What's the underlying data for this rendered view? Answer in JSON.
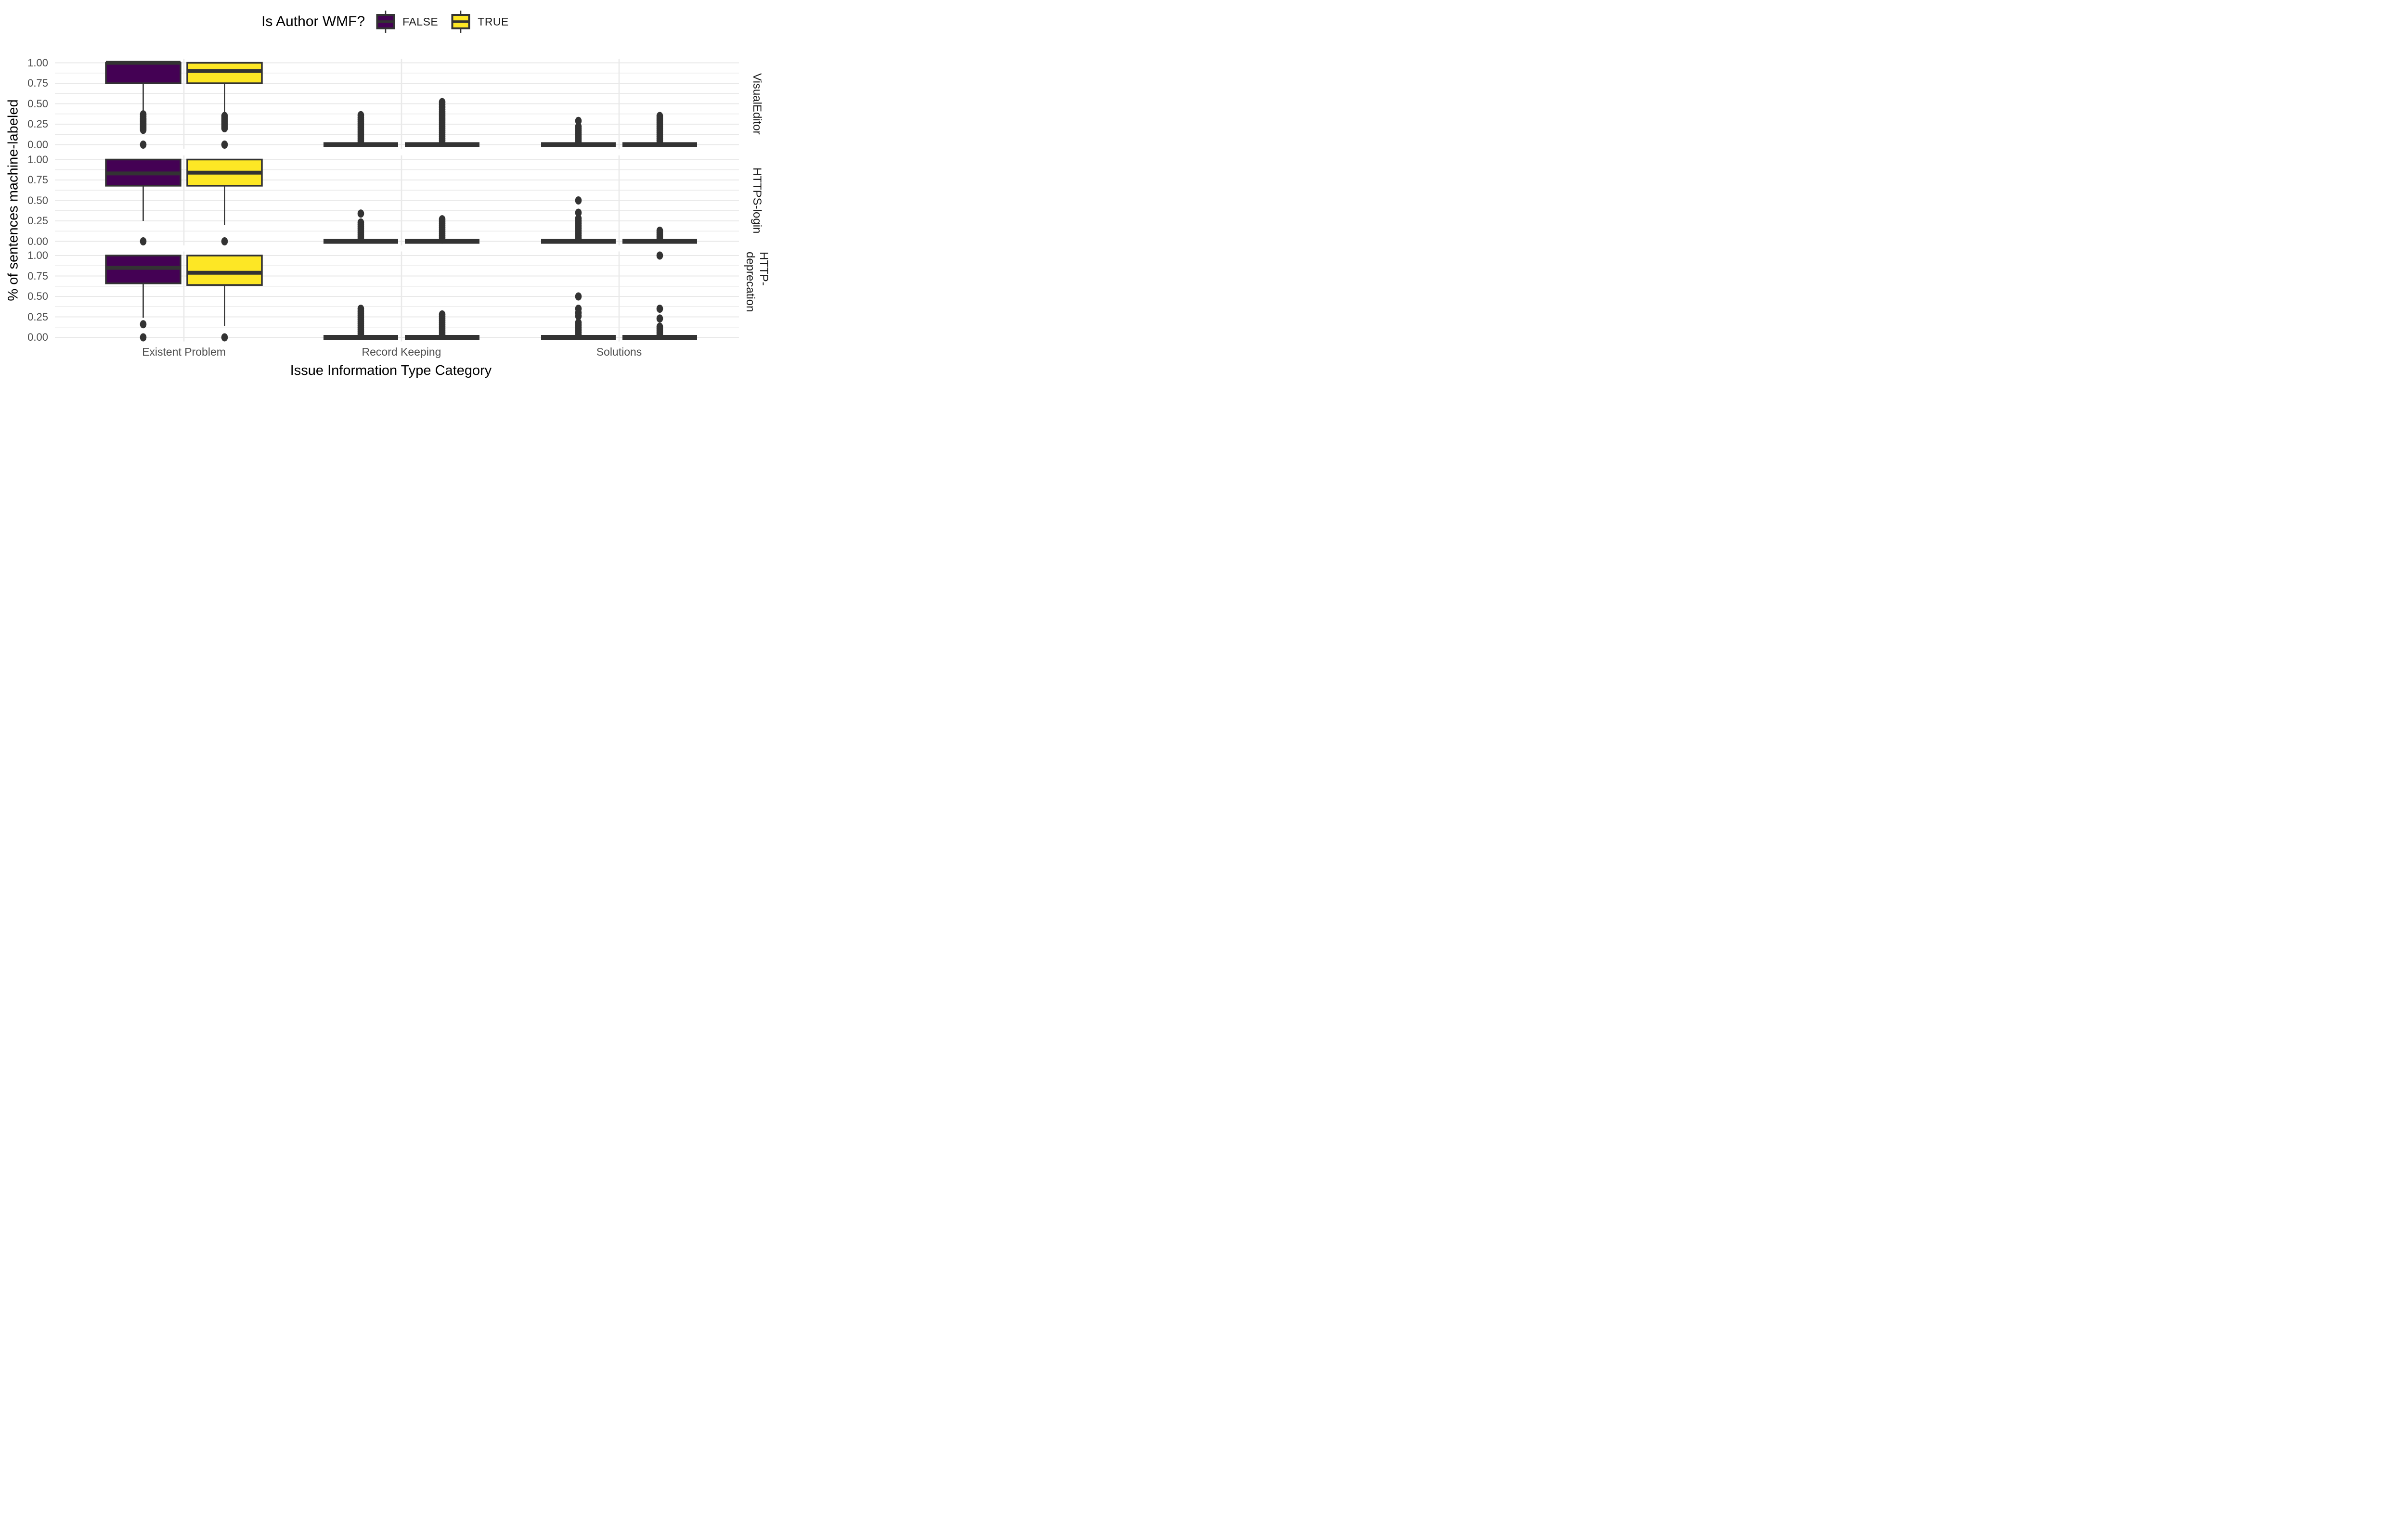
{
  "legend": {
    "title": "Is Author WMF?",
    "entries": [
      {
        "label": "FALSE",
        "color": "#440154"
      },
      {
        "label": "TRUE",
        "color": "#FDE725"
      }
    ]
  },
  "axes": {
    "y_title": "% of sentences machine-labeled",
    "x_title": "Issue Information Type Category",
    "y_tick_labels": [
      "1.00",
      "0.75",
      "0.50",
      "0.25",
      "0.00"
    ],
    "y_tick_values": [
      1.0,
      0.75,
      0.5,
      0.25,
      0.0
    ]
  },
  "style": {
    "box_border_color": "#333333",
    "outlier_color": "#333333",
    "grid_color": "#E9E9E9",
    "tick_text_color": "#4d4d4d",
    "false_color": "#440154",
    "true_color": "#FDE725"
  },
  "chart_data": {
    "type": "boxplot",
    "title": "",
    "xlabel": "Issue Information Type Category",
    "ylabel": "% of sentences machine-labeled",
    "ylim": [
      0,
      1
    ],
    "grid": {
      "major_step": 0.25,
      "minor_step": 0.125,
      "gridlines_on": true
    },
    "legend_position": "top",
    "facets": [
      "VisualEditor",
      "HTTPS-login",
      "HTTP-deprecation"
    ],
    "categories": [
      "Existent Problem",
      "Record Keeping",
      "Solutions"
    ],
    "groups": [
      "FALSE",
      "TRUE"
    ],
    "boxes": [
      {
        "facet": "VisualEditor",
        "category": "Existent Problem",
        "group": "FALSE",
        "stats": {
          "whisker_low": 0.4,
          "q1": 0.75,
          "median": 1.0,
          "q3": 1.0,
          "whisker_high": 1.0
        },
        "outliers": [
          0.37,
          0.345,
          0.32,
          0.3,
          0.28,
          0.26,
          0.24,
          0.22,
          0.2,
          0.18,
          0.0
        ]
      },
      {
        "facet": "VisualEditor",
        "category": "Existent Problem",
        "group": "TRUE",
        "stats": {
          "whisker_low": 0.39,
          "q1": 0.75,
          "median": 0.9,
          "q3": 1.0,
          "whisker_high": 1.0
        },
        "outliers": [
          0.35,
          0.325,
          0.3,
          0.28,
          0.26,
          0.24,
          0.22,
          0.2,
          0.0
        ]
      },
      {
        "facet": "VisualEditor",
        "category": "Record Keeping",
        "group": "FALSE",
        "stats": {
          "whisker_low": 0,
          "q1": 0,
          "median": 0,
          "q3": 0,
          "whisker_high": 0
        },
        "outliers": [
          0.36,
          0.33,
          0.305,
          0.28,
          0.255,
          0.23,
          0.205,
          0.18,
          0.155,
          0.13,
          0.105,
          0.08,
          0.055,
          0.03
        ]
      },
      {
        "facet": "VisualEditor",
        "category": "Record Keeping",
        "group": "TRUE",
        "stats": {
          "whisker_low": 0,
          "q1": 0,
          "median": 0,
          "q3": 0,
          "whisker_high": 0
        },
        "outliers": [
          0.52,
          0.49,
          0.46,
          0.43,
          0.4,
          0.375,
          0.35,
          0.325,
          0.3,
          0.275,
          0.25,
          0.225,
          0.2,
          0.175,
          0.15,
          0.125,
          0.1,
          0.075,
          0.05,
          0.025
        ]
      },
      {
        "facet": "VisualEditor",
        "category": "Solutions",
        "group": "FALSE",
        "stats": {
          "whisker_low": 0,
          "q1": 0,
          "median": 0,
          "q3": 0,
          "whisker_high": 0
        },
        "outliers": [
          0.29,
          0.22,
          0.195,
          0.17,
          0.145,
          0.12,
          0.095,
          0.07,
          0.045,
          0.02
        ]
      },
      {
        "facet": "VisualEditor",
        "category": "Solutions",
        "group": "TRUE",
        "stats": {
          "whisker_low": 0,
          "q1": 0,
          "median": 0,
          "q3": 0,
          "whisker_high": 0
        },
        "outliers": [
          0.35,
          0.325,
          0.3,
          0.275,
          0.25,
          0.225,
          0.2,
          0.175,
          0.15,
          0.125,
          0.1,
          0.075,
          0.05,
          0.025
        ]
      },
      {
        "facet": "HTTPS-login",
        "category": "Existent Problem",
        "group": "FALSE",
        "stats": {
          "whisker_low": 0.25,
          "q1": 0.68,
          "median": 0.83,
          "q3": 1.0,
          "whisker_high": 1.0
        },
        "outliers": [
          0.0
        ]
      },
      {
        "facet": "HTTPS-login",
        "category": "Existent Problem",
        "group": "TRUE",
        "stats": {
          "whisker_low": 0.2,
          "q1": 0.68,
          "median": 0.84,
          "q3": 1.0,
          "whisker_high": 1.0
        },
        "outliers": [
          0.0
        ]
      },
      {
        "facet": "HTTPS-login",
        "category": "Record Keeping",
        "group": "FALSE",
        "stats": {
          "whisker_low": 0,
          "q1": 0,
          "median": 0,
          "q3": 0,
          "whisker_high": 0
        },
        "outliers": [
          0.34,
          0.23,
          0.205,
          0.18,
          0.155,
          0.13,
          0.105,
          0.08,
          0.055,
          0.03
        ]
      },
      {
        "facet": "HTTPS-login",
        "category": "Record Keeping",
        "group": "TRUE",
        "stats": {
          "whisker_low": 0,
          "q1": 0,
          "median": 0,
          "q3": 0,
          "whisker_high": 0
        },
        "outliers": [
          0.27,
          0.245,
          0.22,
          0.195,
          0.17,
          0.145,
          0.12,
          0.095,
          0.07,
          0.045,
          0.02
        ]
      },
      {
        "facet": "HTTPS-login",
        "category": "Solutions",
        "group": "FALSE",
        "stats": {
          "whisker_low": 0,
          "q1": 0,
          "median": 0,
          "q3": 0,
          "whisker_high": 0
        },
        "outliers": [
          0.5,
          0.35,
          0.28,
          0.25,
          0.22,
          0.19,
          0.16,
          0.13,
          0.1,
          0.07,
          0.04
        ]
      },
      {
        "facet": "HTTPS-login",
        "category": "Solutions",
        "group": "TRUE",
        "stats": {
          "whisker_low": 0,
          "q1": 0,
          "median": 0,
          "q3": 0,
          "whisker_high": 0
        },
        "outliers": [
          0.13,
          0.105,
          0.08,
          0.055,
          0.03
        ]
      },
      {
        "facet": "HTTP-deprecation",
        "category": "Existent Problem",
        "group": "FALSE",
        "stats": {
          "whisker_low": 0.24,
          "q1": 0.66,
          "median": 0.85,
          "q3": 1.0,
          "whisker_high": 1.0
        },
        "outliers": [
          0.16,
          0.0
        ]
      },
      {
        "facet": "HTTP-deprecation",
        "category": "Existent Problem",
        "group": "TRUE",
        "stats": {
          "whisker_low": 0.14,
          "q1": 0.64,
          "median": 0.79,
          "q3": 1.0,
          "whisker_high": 1.0
        },
        "outliers": [
          0.0
        ]
      },
      {
        "facet": "HTTP-deprecation",
        "category": "Record Keeping",
        "group": "FALSE",
        "stats": {
          "whisker_low": 0,
          "q1": 0,
          "median": 0,
          "q3": 0,
          "whisker_high": 0
        },
        "outliers": [
          0.35,
          0.32,
          0.295,
          0.27,
          0.245,
          0.22,
          0.195,
          0.17,
          0.145,
          0.12,
          0.095,
          0.07,
          0.045,
          0.02
        ]
      },
      {
        "facet": "HTTP-deprecation",
        "category": "Record Keeping",
        "group": "TRUE",
        "stats": {
          "whisker_low": 0,
          "q1": 0,
          "median": 0,
          "q3": 0,
          "whisker_high": 0
        },
        "outliers": [
          0.28,
          0.255,
          0.23,
          0.205,
          0.18,
          0.155,
          0.13,
          0.105,
          0.08,
          0.055,
          0.03
        ]
      },
      {
        "facet": "HTTP-deprecation",
        "category": "Solutions",
        "group": "FALSE",
        "stats": {
          "whisker_low": 0,
          "q1": 0,
          "median": 0,
          "q3": 0,
          "whisker_high": 0
        },
        "outliers": [
          0.5,
          0.35,
          0.3,
          0.26,
          0.18,
          0.15,
          0.12,
          0.09,
          0.06,
          0.03
        ]
      },
      {
        "facet": "HTTP-deprecation",
        "category": "Solutions",
        "group": "TRUE",
        "stats": {
          "whisker_low": 0,
          "q1": 0,
          "median": 0,
          "q3": 0,
          "whisker_high": 0
        },
        "outliers": [
          1.0,
          0.35,
          0.23,
          0.13,
          0.105,
          0.08,
          0.055,
          0.03
        ]
      }
    ]
  }
}
